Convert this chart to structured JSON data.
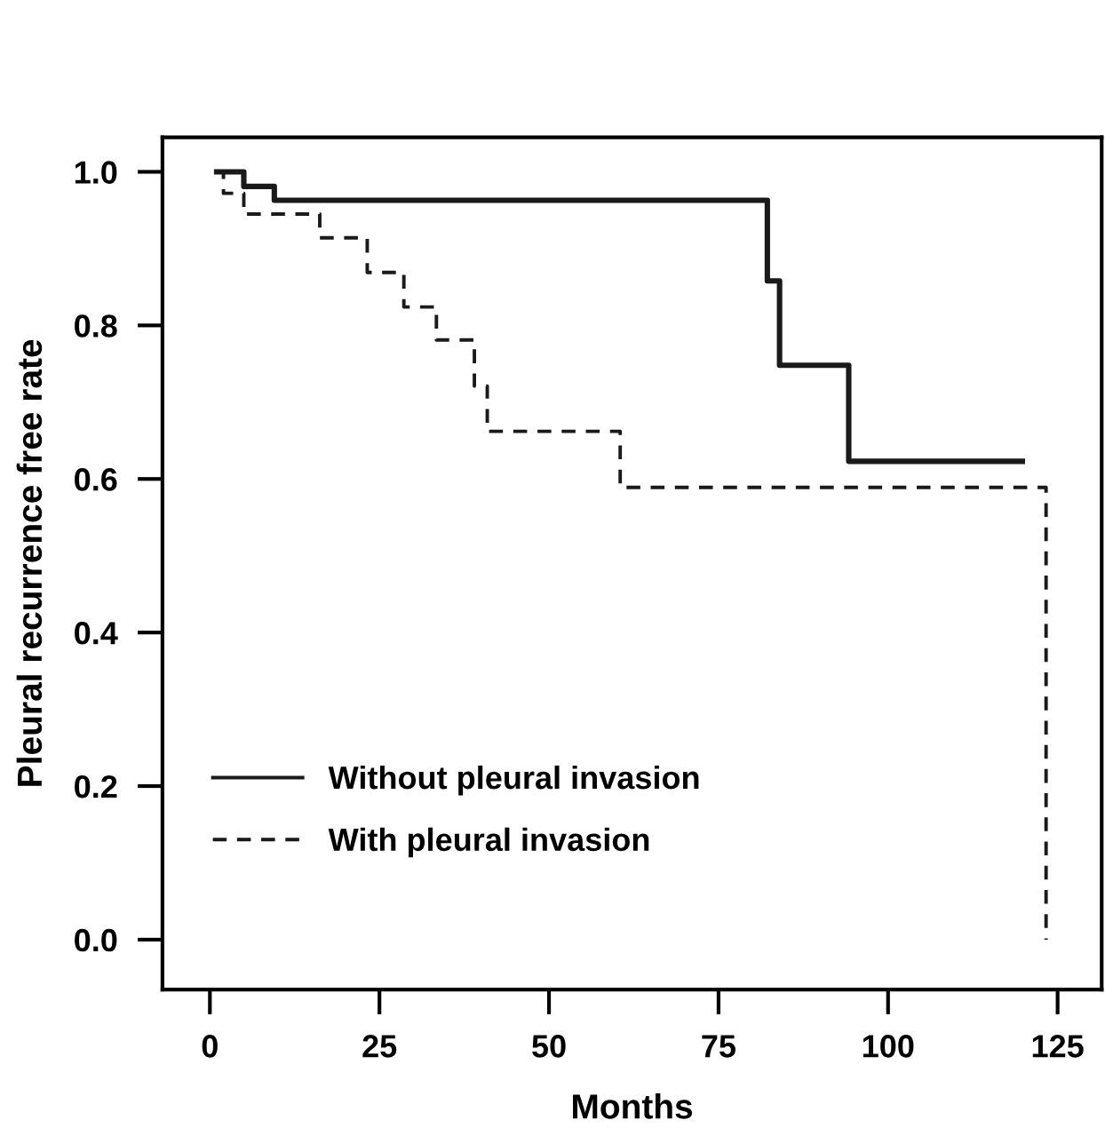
{
  "chart_data": {
    "type": "step",
    "xlabel": "Months",
    "ylabel": "Pleural recurrence free rate",
    "xlim": [
      -7,
      131.5
    ],
    "ylim": [
      -0.065,
      1.045
    ],
    "xticks": [
      0,
      25,
      50,
      75,
      100,
      125
    ],
    "yticks": [
      {
        "value": 0,
        "label": "0.0"
      },
      0.2,
      0.4,
      0.6,
      0.8,
      {
        "value": 1,
        "label": "1.0"
      }
    ],
    "grid": false,
    "legend": "bottom left",
    "marker": "none",
    "series": [
      {
        "name": "Without pleural invasion",
        "color": "#1a1a1a",
        "line_style": "solid",
        "x": [
          1,
          5,
          9.5,
          82.2,
          84,
          94.2,
          119.8
        ],
        "values": [
          1.0,
          0.981,
          0.963,
          0.858,
          0.748,
          0.623,
          0.623
        ]
      },
      {
        "name": "With pleural invasion",
        "color": "#1a1a1a",
        "line_style": "dashed",
        "x": [
          1,
          2,
          5,
          16.2,
          23.2,
          28.6,
          33.4,
          39,
          40.9,
          60.5,
          123.3
        ],
        "values": [
          1.0,
          0.972,
          0.945,
          0.914,
          0.869,
          0.824,
          0.781,
          0.721,
          0.662,
          0.589,
          0.0
        ]
      }
    ]
  }
}
